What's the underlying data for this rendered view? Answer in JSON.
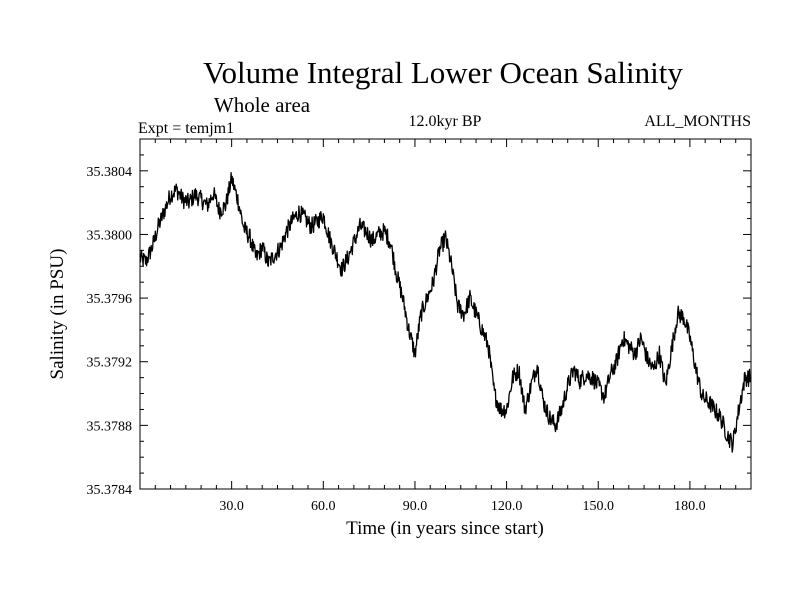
{
  "chart_data": {
    "type": "line",
    "title": "Volume Integral Lower Ocean Salinity",
    "subtitle": "Whole area",
    "experiment": "Expt = temjm1",
    "period": "12.0kyr BP",
    "months": "ALL_MONTHS",
    "xlabel": "Time (in years since start)",
    "ylabel": "Salinity (in PSU)",
    "xlim": [
      0,
      200
    ],
    "ylim": [
      35.3784,
      35.3806
    ],
    "x_ticks": [
      30,
      60,
      90,
      120,
      150,
      180
    ],
    "x_tick_labels": [
      "30.0",
      "60.0",
      "90.0",
      "120.0",
      "150.0",
      "180.0"
    ],
    "y_ticks": [
      35.3784,
      35.3788,
      35.3792,
      35.3796,
      35.38,
      35.3804
    ],
    "y_tick_labels": [
      "35.3784",
      "35.3788",
      "35.3792",
      "35.3796",
      "35.3800",
      "35.3804"
    ],
    "grid": false,
    "series": [
      {
        "name": "Salinity",
        "x": [
          0,
          2,
          4,
          6,
          8,
          10,
          12,
          14,
          16,
          18,
          20,
          22,
          24,
          26,
          28,
          30,
          32,
          34,
          36,
          38,
          40,
          42,
          44,
          46,
          48,
          50,
          52,
          54,
          56,
          58,
          60,
          62,
          64,
          66,
          68,
          70,
          72,
          74,
          76,
          78,
          80,
          82,
          84,
          86,
          88,
          90,
          92,
          94,
          96,
          98,
          100,
          102,
          104,
          106,
          108,
          110,
          112,
          114,
          116,
          118,
          120,
          122,
          124,
          126,
          128,
          130,
          132,
          134,
          136,
          138,
          140,
          142,
          144,
          146,
          148,
          150,
          152,
          154,
          156,
          158,
          160,
          162,
          164,
          166,
          168,
          170,
          172,
          174,
          176,
          178,
          180,
          182,
          184,
          186,
          188,
          190,
          192,
          194,
          196,
          198,
          200
        ],
        "values": [
          35.37985,
          35.37983,
          35.37992,
          35.38005,
          35.38015,
          35.38025,
          35.38028,
          35.38022,
          35.3802,
          35.38025,
          35.38022,
          35.38018,
          35.38026,
          35.38015,
          35.38018,
          35.38035,
          35.38022,
          35.38004,
          35.37998,
          35.37985,
          35.37992,
          35.37982,
          35.37987,
          35.37992,
          35.38002,
          35.38009,
          35.38014,
          35.3801,
          35.38005,
          35.38008,
          35.38012,
          35.37998,
          35.37988,
          35.37978,
          35.37985,
          35.37995,
          35.38005,
          35.38002,
          35.37996,
          35.38,
          35.38002,
          35.37995,
          35.37975,
          35.3796,
          35.3794,
          35.37925,
          35.3795,
          35.3796,
          35.3797,
          35.3799,
          35.37998,
          35.3798,
          35.37955,
          35.3795,
          35.3796,
          35.3795,
          35.3794,
          35.3793,
          35.379,
          35.3789,
          35.3789,
          35.3791,
          35.37915,
          35.3789,
          35.37905,
          35.37918,
          35.37895,
          35.37885,
          35.3788,
          35.3789,
          35.37905,
          35.37915,
          35.37908,
          35.37912,
          35.3791,
          35.37905,
          35.37898,
          35.37912,
          35.3792,
          35.37935,
          35.3793,
          35.37925,
          35.37935,
          35.37922,
          35.37915,
          35.37925,
          35.37905,
          35.37928,
          35.3795,
          35.37948,
          35.37935,
          35.37915,
          35.37898,
          35.37895,
          35.3789,
          35.37885,
          35.37875,
          35.37868,
          35.3789,
          35.3791,
          35.3791
        ]
      }
    ]
  },
  "colors": {
    "line": "#000000",
    "frame": "#000000",
    "background": "#ffffff"
  }
}
